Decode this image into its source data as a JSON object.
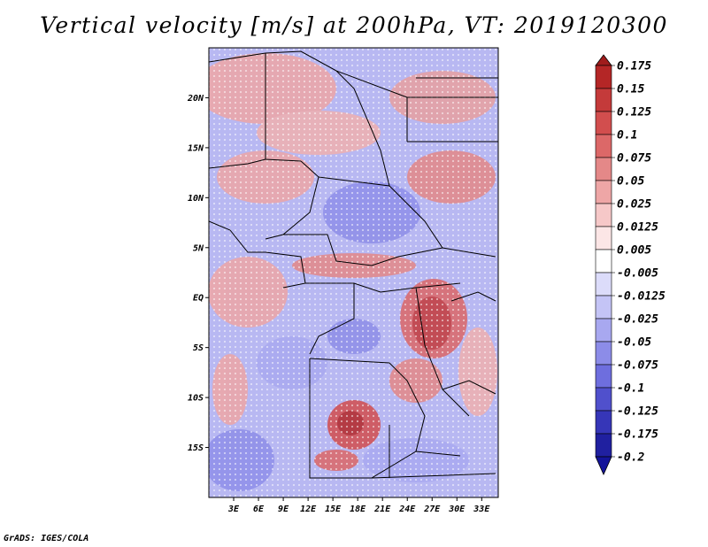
{
  "title": "Vertical velocity [m/s] at 200hPa, VT: 2019120300",
  "credit": "GrADS: IGES/COLA",
  "map": {
    "lon_range": [
      0,
      35
    ],
    "lat_range": [
      -20,
      25
    ],
    "lon_ticks": [
      "3E",
      "6E",
      "9E",
      "12E",
      "15E",
      "18E",
      "21E",
      "24E",
      "27E",
      "30E",
      "33E"
    ],
    "lat_ticks": [
      "20N",
      "15N",
      "10N",
      "5N",
      "EQ",
      "5S",
      "10S",
      "15S"
    ]
  },
  "colorbar": {
    "labels": [
      "0.175",
      "0.15",
      "0.125",
      "0.1",
      "0.075",
      "0.05",
      "0.025",
      "0.0125",
      "0.005",
      "-0.005",
      "-0.0125",
      "-0.025",
      "-0.05",
      "-0.075",
      "-0.1",
      "-0.125",
      "-0.175",
      "-0.2"
    ],
    "colors": [
      "#a01c1c",
      "#b42626",
      "#c43a3a",
      "#d24e4e",
      "#dc6868",
      "#e48888",
      "#eea6a6",
      "#f6c8c8",
      "#fce6e6",
      "#ffffff",
      "#dcdcfa",
      "#c4c4f6",
      "#a8a8f0",
      "#8c8ce8",
      "#6e6ede",
      "#5050cc",
      "#3636b8",
      "#2020a0",
      "#14149a"
    ]
  }
}
